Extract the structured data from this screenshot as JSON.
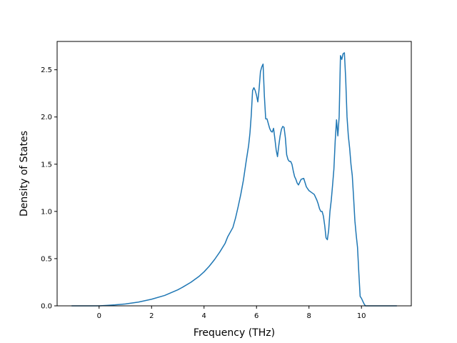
{
  "chart_data": {
    "type": "line",
    "title": "",
    "xlabel": "Frequency (THz)",
    "ylabel": "Density of States",
    "xlim": [
      -1.6,
      11.9
    ],
    "ylim": [
      0,
      2.8
    ],
    "xticks": [
      0,
      2,
      4,
      6,
      8,
      10
    ],
    "xtick_labels": [
      "0",
      "2",
      "4",
      "6",
      "8",
      "10"
    ],
    "yticks": [
      0.0,
      0.5,
      1.0,
      1.5,
      2.0,
      2.5
    ],
    "ytick_labels": [
      "0.0",
      "0.5",
      "1.0",
      "1.5",
      "2.0",
      "2.5"
    ],
    "grid": false,
    "legend": "none",
    "color": "#1f77b4",
    "series": [
      {
        "name": "",
        "x": [
          -1.05,
          -0.5,
          0.0,
          0.3,
          0.6,
          1.0,
          1.5,
          2.0,
          2.5,
          3.0,
          3.2,
          3.5,
          3.8,
          4.0,
          4.2,
          4.4,
          4.6,
          4.8,
          4.9,
          5.0,
          5.1,
          5.2,
          5.3,
          5.4,
          5.5,
          5.6,
          5.7,
          5.75,
          5.8,
          5.85,
          5.9,
          5.95,
          6.0,
          6.05,
          6.1,
          6.15,
          6.2,
          6.25,
          6.3,
          6.35,
          6.4,
          6.45,
          6.5,
          6.55,
          6.6,
          6.65,
          6.7,
          6.75,
          6.8,
          6.85,
          6.9,
          6.95,
          7.0,
          7.05,
          7.1,
          7.15,
          7.2,
          7.25,
          7.3,
          7.35,
          7.4,
          7.45,
          7.5,
          7.55,
          7.6,
          7.7,
          7.8,
          7.9,
          8.0,
          8.1,
          8.2,
          8.3,
          8.35,
          8.4,
          8.45,
          8.5,
          8.55,
          8.6,
          8.65,
          8.7,
          8.75,
          8.8,
          8.85,
          8.9,
          8.95,
          9.0,
          9.05,
          9.1,
          9.15,
          9.2,
          9.25,
          9.3,
          9.35,
          9.4,
          9.45,
          9.5,
          9.55,
          9.6,
          9.65,
          9.7,
          9.75,
          9.8,
          9.85,
          9.9,
          9.95,
          10.0,
          10.05,
          10.1,
          10.15,
          10.2,
          10.3,
          10.4,
          10.6,
          11.0,
          11.35
        ],
        "y": [
          0.0,
          0.0,
          0.0,
          0.005,
          0.01,
          0.02,
          0.04,
          0.07,
          0.11,
          0.17,
          0.2,
          0.25,
          0.31,
          0.36,
          0.42,
          0.49,
          0.57,
          0.66,
          0.73,
          0.78,
          0.83,
          0.93,
          1.05,
          1.18,
          1.33,
          1.52,
          1.7,
          1.83,
          2.02,
          2.28,
          2.31,
          2.28,
          2.23,
          2.16,
          2.3,
          2.48,
          2.53,
          2.56,
          2.22,
          1.98,
          1.98,
          1.93,
          1.88,
          1.85,
          1.84,
          1.88,
          1.77,
          1.65,
          1.58,
          1.7,
          1.8,
          1.87,
          1.9,
          1.89,
          1.78,
          1.6,
          1.55,
          1.53,
          1.53,
          1.5,
          1.43,
          1.37,
          1.34,
          1.3,
          1.28,
          1.34,
          1.35,
          1.26,
          1.22,
          1.2,
          1.18,
          1.12,
          1.08,
          1.03,
          1.0,
          1.0,
          0.95,
          0.85,
          0.72,
          0.7,
          0.8,
          1.0,
          1.12,
          1.28,
          1.45,
          1.75,
          1.97,
          1.8,
          2.0,
          2.65,
          2.61,
          2.67,
          2.68,
          2.4,
          2.0,
          1.8,
          1.67,
          1.5,
          1.38,
          1.15,
          0.9,
          0.75,
          0.62,
          0.35,
          0.1,
          0.08,
          0.05,
          0.02,
          0.0,
          0.0,
          0.0,
          0.0,
          0.0,
          0.0,
          0.0
        ]
      }
    ]
  }
}
